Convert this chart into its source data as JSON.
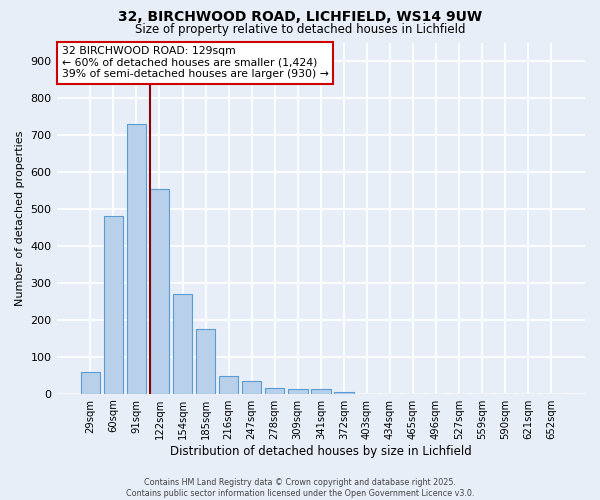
{
  "title": "32, BIRCHWOOD ROAD, LICHFIELD, WS14 9UW",
  "subtitle": "Size of property relative to detached houses in Lichfield",
  "xlabel": "Distribution of detached houses by size in Lichfield",
  "ylabel": "Number of detached properties",
  "footer_line1": "Contains HM Land Registry data © Crown copyright and database right 2025.",
  "footer_line2": "Contains public sector information licensed under the Open Government Licence v3.0.",
  "categories": [
    "29sqm",
    "60sqm",
    "91sqm",
    "122sqm",
    "154sqm",
    "185sqm",
    "216sqm",
    "247sqm",
    "278sqm",
    "309sqm",
    "341sqm",
    "372sqm",
    "403sqm",
    "434sqm",
    "465sqm",
    "496sqm",
    "527sqm",
    "559sqm",
    "590sqm",
    "621sqm",
    "652sqm"
  ],
  "values": [
    60,
    480,
    730,
    555,
    270,
    175,
    48,
    35,
    15,
    12,
    12,
    5,
    0,
    0,
    0,
    0,
    0,
    0,
    0,
    0,
    0
  ],
  "bar_color": "#b8d0ea",
  "bar_edge_color": "#5b9bd5",
  "background_color": "#e8eef8",
  "grid_color": "#d0d8ee",
  "annotation_box_text": "32 BIRCHWOOD ROAD: 129sqm\n← 60% of detached houses are smaller (1,424)\n39% of semi-detached houses are larger (930) →",
  "vline_color": "#8b0000",
  "vline_x": 2.5,
  "ylim": [
    0,
    950
  ],
  "yticks": [
    0,
    100,
    200,
    300,
    400,
    500,
    600,
    700,
    800,
    900
  ]
}
